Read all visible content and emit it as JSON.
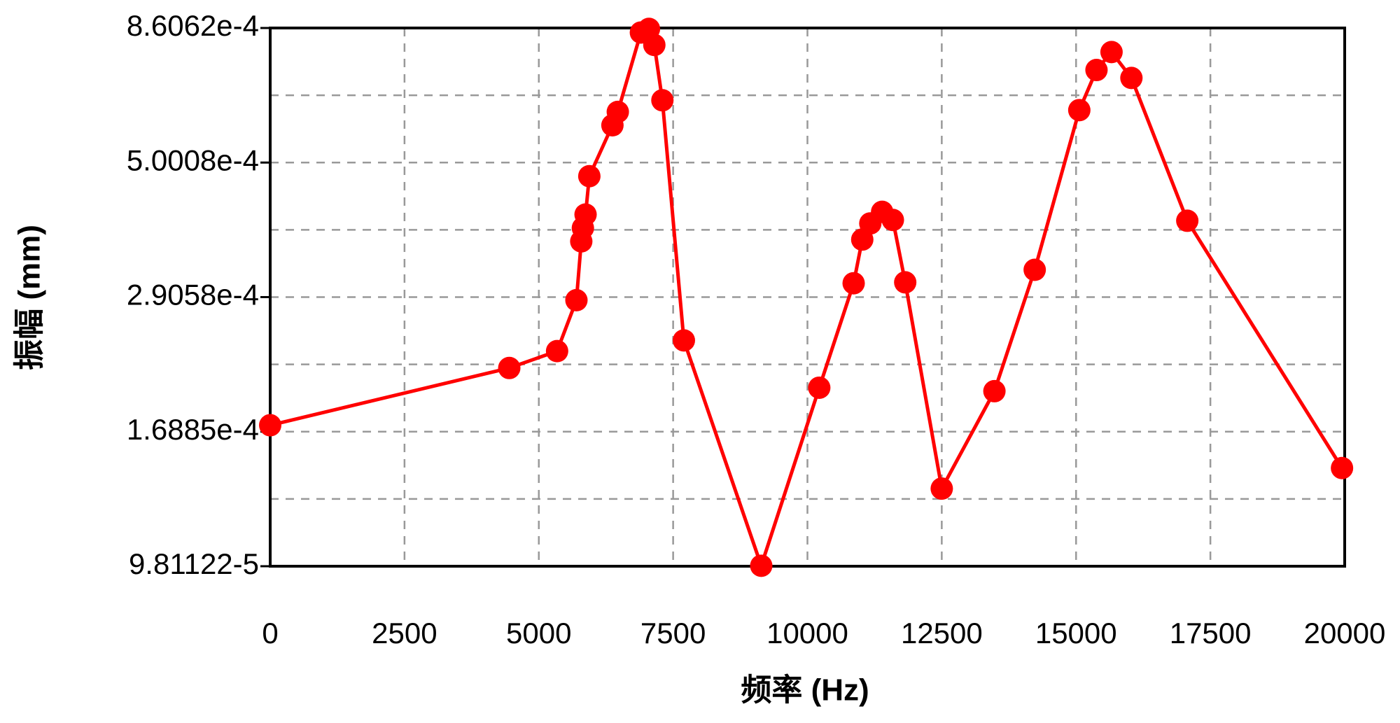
{
  "chart_data": {
    "type": "line",
    "x_label": "频率 (Hz)",
    "y_label": "振幅 (mm)",
    "x": [
      0,
      4450,
      5340,
      5700,
      5790,
      5820,
      5870,
      5940,
      6370,
      6470,
      6900,
      7050,
      7150,
      7300,
      7700,
      9140,
      10220,
      10860,
      11020,
      11170,
      11390,
      11590,
      11820,
      12500,
      13480,
      14230,
      15060,
      15380,
      15660,
      16030,
      17070,
      19950
    ],
    "series": [
      {
        "name": "振幅",
        "color": "#ff0000",
        "values": [
          0.0001733,
          0.0002183,
          0.0002337,
          0.000287,
          0.0003639,
          0.0003841,
          0.0004055,
          0.0004733,
          0.0005812,
          0.0006135,
          0.0008451,
          0.0008575,
          0.0008036,
          0.0006429,
          0.000244,
          9.83e-05,
          0.0002016,
          0.0003073,
          0.0003665,
          0.0003912,
          0.0004099,
          0.0003967,
          0.0003084,
          0.0001342,
          0.0001988,
          0.0003244,
          0.0006179,
          0.0007264,
          0.000781,
          0.0007035,
          0.0003954,
          0.0001458
        ]
      }
    ],
    "xlim": [
      0,
      20000
    ],
    "xticks": [
      0,
      2500,
      5000,
      7500,
      10000,
      12500,
      15000,
      17500,
      20000
    ],
    "ylim": [
      9.81122e-05,
      0.00086062
    ],
    "yticks": [
      {
        "value": 9.81122e-05,
        "label": "9.81122-5"
      },
      {
        "value": 0.00016885,
        "label": "1.6885e-4"
      },
      {
        "value": 0.00029058,
        "label": "2.9058e-4"
      },
      {
        "value": 0.00050008,
        "label": "5.0008e-4"
      },
      {
        "value": 0.00086062,
        "label": "8.6062e-4"
      }
    ],
    "yscale": "log",
    "grid": true
  }
}
